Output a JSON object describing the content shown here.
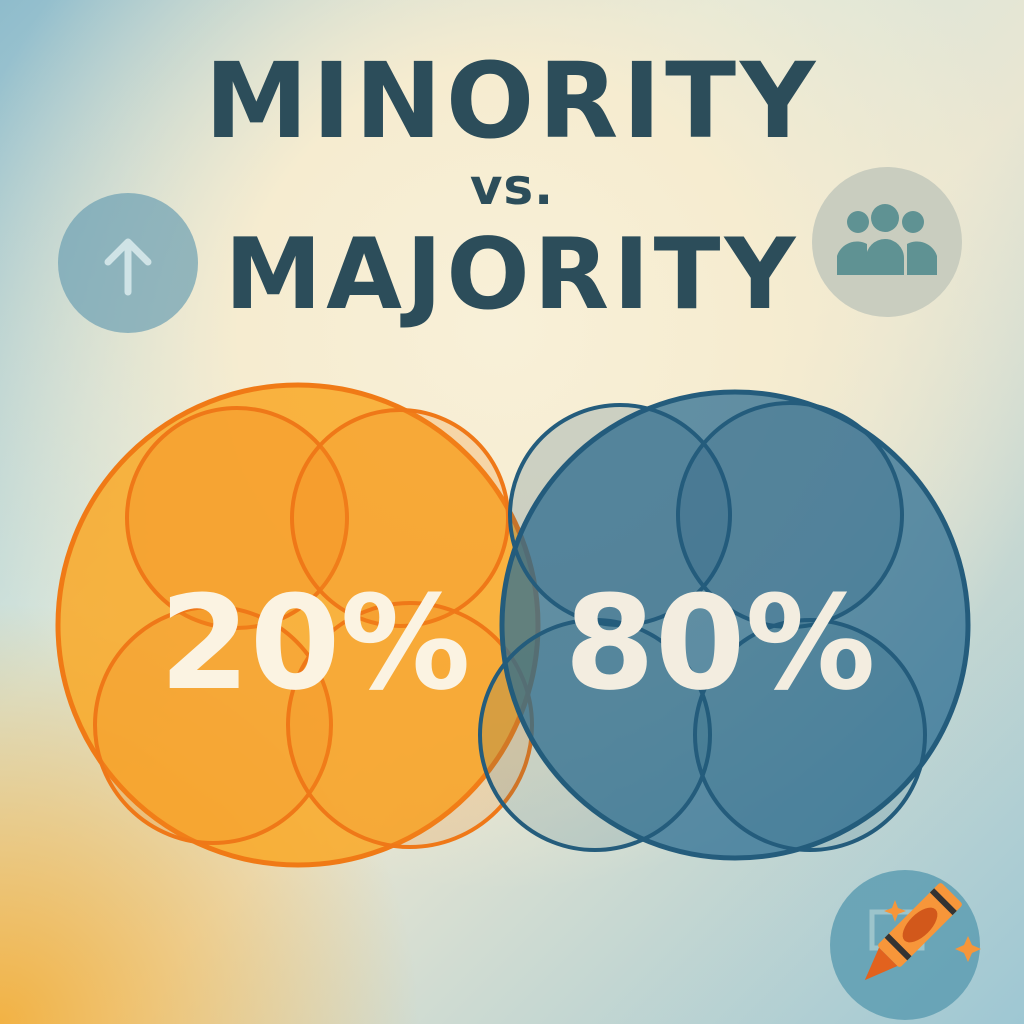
{
  "title": {
    "line1": "MINORITY",
    "line2": "vs.",
    "line3": "MAJORITY"
  },
  "minority": {
    "percent": "20%",
    "value": 20,
    "color": "#f7941d"
  },
  "majority": {
    "percent": "80%",
    "value": 80,
    "color": "#2f6f93"
  },
  "icons": {
    "left": "arrow-up-icon",
    "right": "people-group-icon",
    "bottom_right": "crayon-icon"
  }
}
